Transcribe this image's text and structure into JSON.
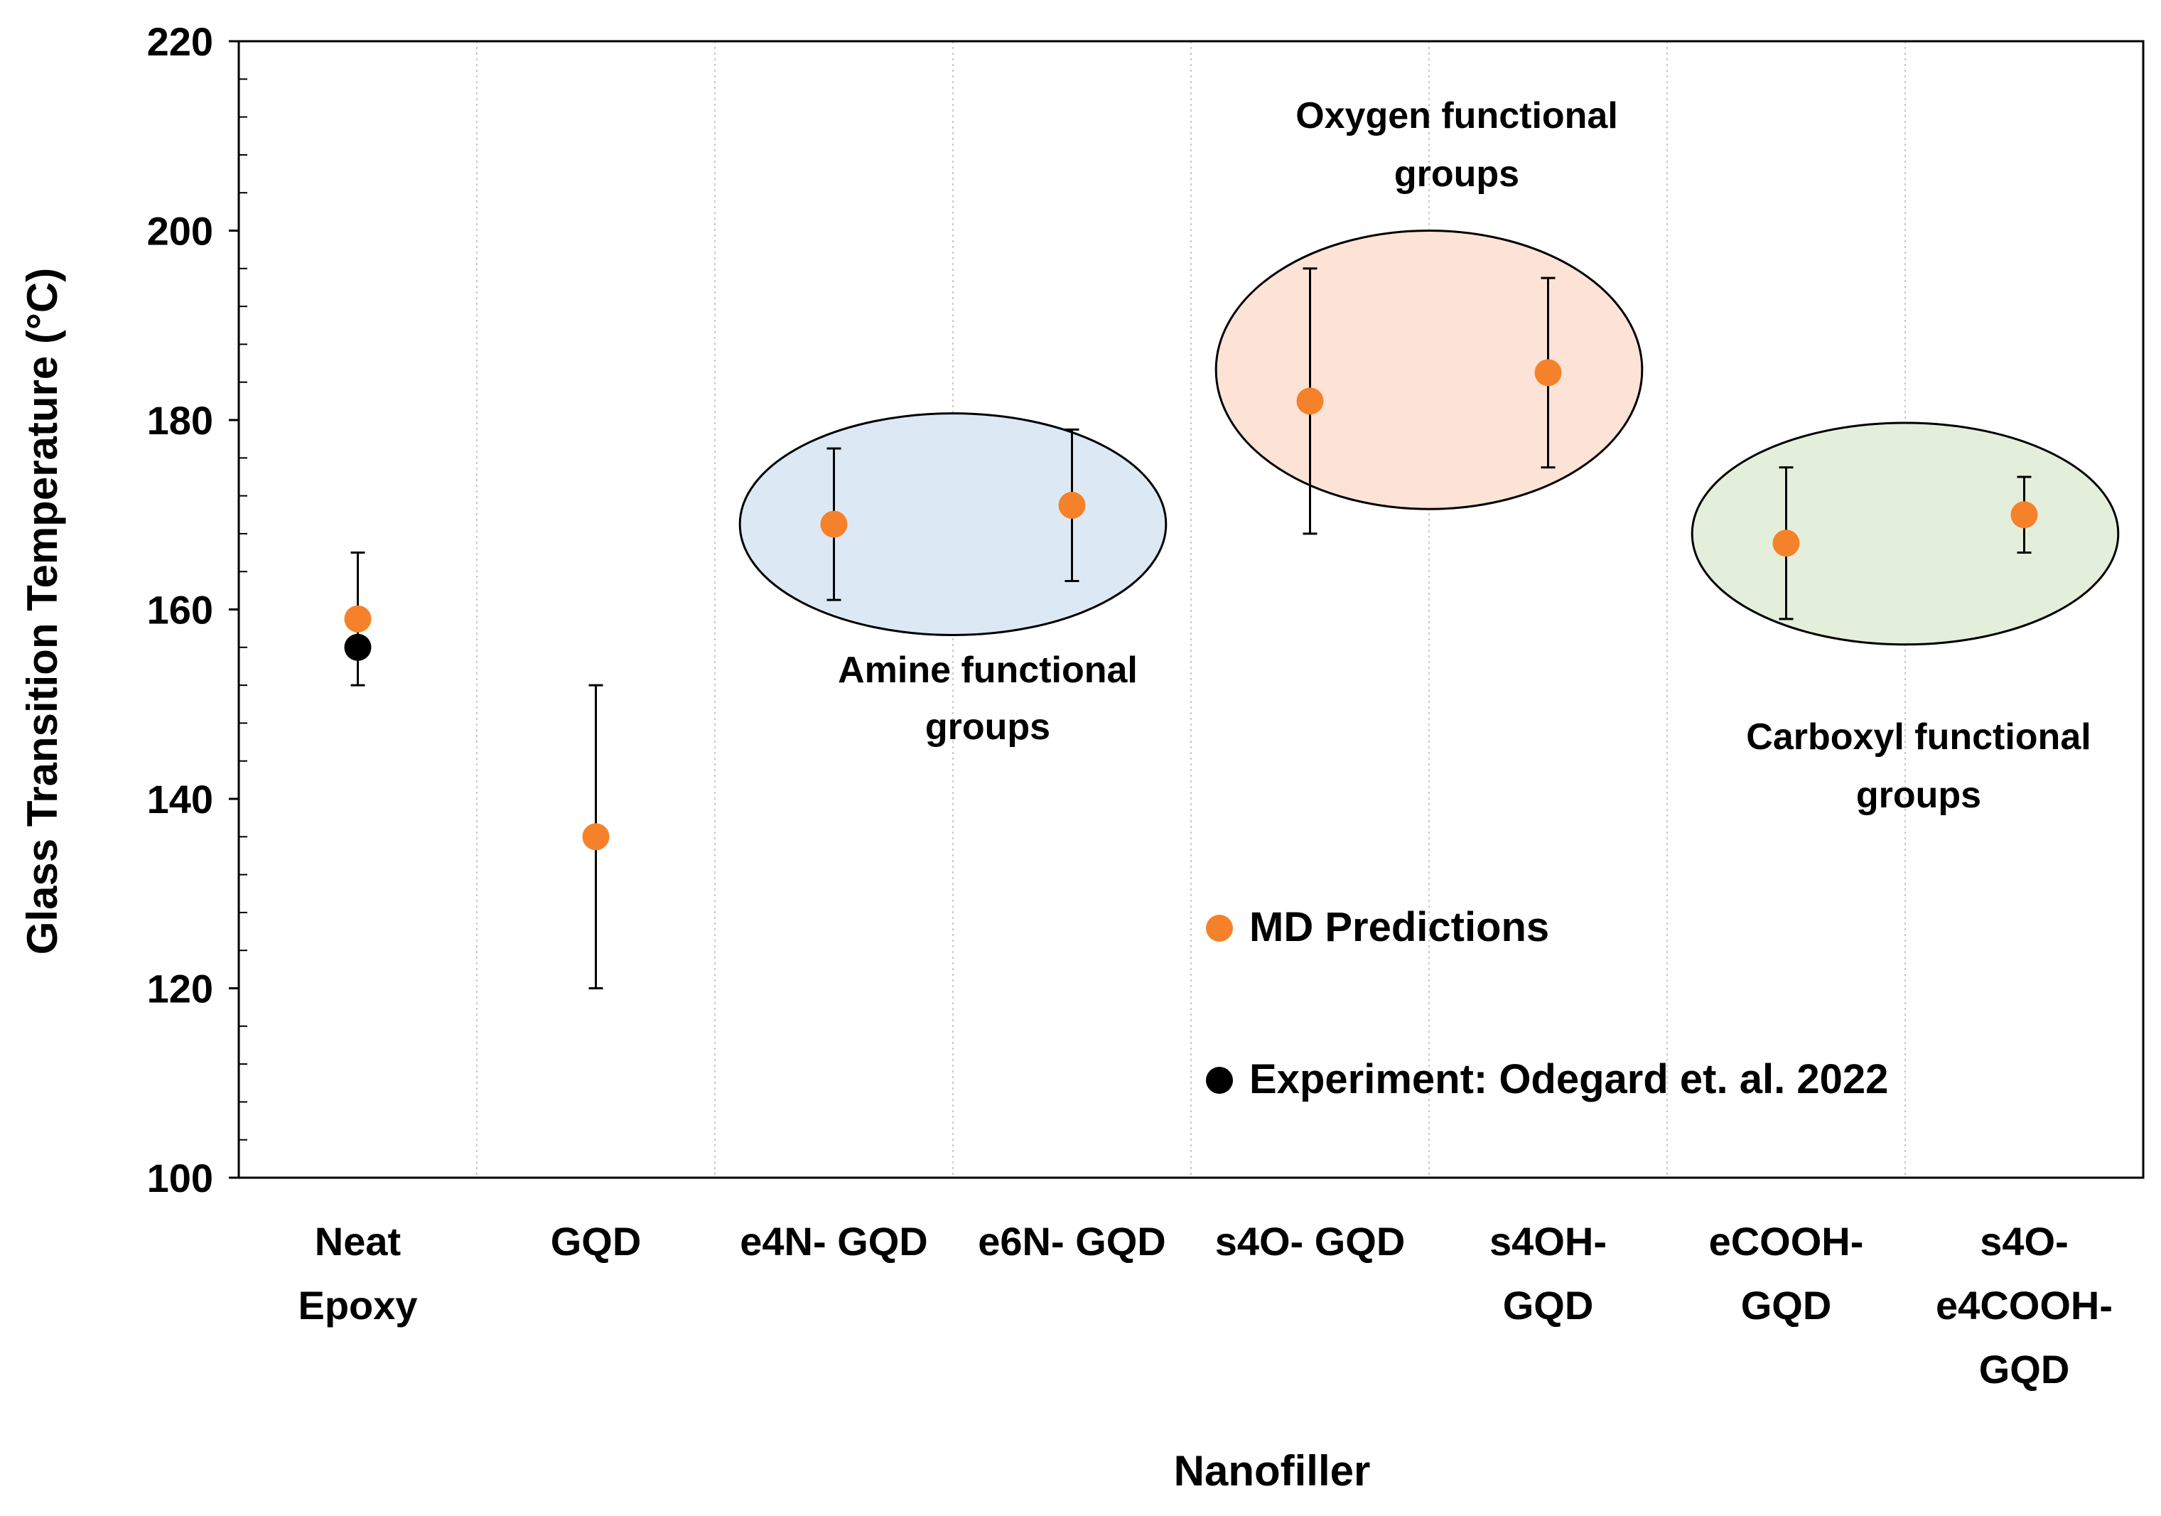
{
  "chart_data": {
    "type": "scatter",
    "xlabel": "Nanofiller",
    "ylabel": "Glass Transition Temperature (°C)",
    "ylim": [
      100,
      220
    ],
    "y_ticks": [
      100,
      120,
      140,
      160,
      180,
      200,
      220
    ],
    "grid": "vertical dotted",
    "categories": [
      [
        "Neat",
        "Epoxy"
      ],
      [
        "GQD"
      ],
      [
        "e4N- GQD"
      ],
      [
        "e6N- GQD"
      ],
      [
        "s4O- GQD"
      ],
      [
        "s4OH-",
        "GQD"
      ],
      [
        "eCOOH-",
        "GQD"
      ],
      [
        "s4O-",
        "e4COOH-",
        "GQD"
      ]
    ],
    "series": [
      {
        "name": "MD Predictions",
        "color": "#f5822a",
        "values": [
          159,
          136,
          169,
          171,
          182,
          185,
          167,
          170
        ],
        "error_low": [
          152,
          120,
          161,
          163,
          168,
          175,
          159,
          166
        ],
        "error_high": [
          166,
          152,
          177,
          179,
          196,
          195,
          175,
          174
        ]
      },
      {
        "name": "Experiment: Odegard et. al. 2022",
        "color": "#000000",
        "points": [
          {
            "category_index": 0,
            "value": 156
          }
        ]
      }
    ],
    "groups": [
      {
        "label": [
          "Amine functional",
          "groups"
        ],
        "fill": "#dce9f5",
        "categories": [
          2,
          3
        ],
        "y_center": 169,
        "y_half": 11.7
      },
      {
        "label": [
          "Oxygen functional",
          "groups"
        ],
        "fill": "#fce3d6",
        "categories": [
          4,
          5
        ],
        "y_center": 185.3,
        "y_half": 14.7
      },
      {
        "label": [
          "Carboxyl functional",
          "groups"
        ],
        "fill": "#e3efda",
        "categories": [
          6,
          7
        ],
        "y_center": 168,
        "y_half": 11.7
      }
    ],
    "legend_position": "lower-middle"
  }
}
